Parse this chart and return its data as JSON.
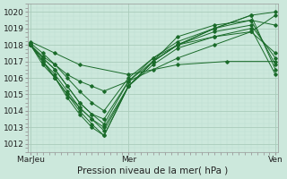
{
  "xlabel": "Pression niveau de la mer( hPa )",
  "bg_color": "#cce8dc",
  "grid_major_color": "#aaccbb",
  "grid_minor_color": "#bbddd0",
  "line_color": "#1a6b2a",
  "ylim": [
    1011.5,
    1020.5
  ],
  "yticks": [
    1012,
    1013,
    1014,
    1015,
    1016,
    1017,
    1018,
    1019,
    1020
  ],
  "xtick_labels": [
    "Mar⁠Jeu",
    "Mer",
    "Ven"
  ],
  "xtick_positions": [
    0.0,
    0.4,
    1.0
  ],
  "lines": [
    {
      "x": [
        0.0,
        0.05,
        0.1,
        0.15,
        0.2,
        0.25,
        0.3,
        0.4,
        0.5,
        0.6,
        0.75,
        0.9,
        1.0
      ],
      "y": [
        1018.1,
        1017.5,
        1016.8,
        1016.2,
        1015.8,
        1015.5,
        1015.2,
        1015.8,
        1016.5,
        1017.2,
        1018.0,
        1018.8,
        1019.8
      ]
    },
    {
      "x": [
        0.0,
        0.05,
        0.1,
        0.15,
        0.2,
        0.25,
        0.3,
        0.4,
        0.5,
        0.6,
        0.75,
        0.9,
        1.0
      ],
      "y": [
        1018.0,
        1017.0,
        1016.0,
        1015.0,
        1014.2,
        1013.5,
        1012.8,
        1015.5,
        1017.0,
        1018.0,
        1019.0,
        1019.8,
        1020.0
      ]
    },
    {
      "x": [
        0.0,
        0.05,
        0.1,
        0.15,
        0.2,
        0.25,
        0.3,
        0.4,
        0.5,
        0.6,
        0.75,
        0.9,
        1.0
      ],
      "y": [
        1018.0,
        1017.2,
        1016.5,
        1015.5,
        1014.5,
        1013.8,
        1013.2,
        1015.8,
        1017.2,
        1018.2,
        1019.0,
        1019.5,
        1019.2
      ]
    },
    {
      "x": [
        0.0,
        0.05,
        0.1,
        0.15,
        0.2,
        0.25,
        0.3,
        0.4,
        0.5,
        0.6,
        0.75,
        0.9,
        1.0
      ],
      "y": [
        1018.0,
        1016.8,
        1016.0,
        1015.0,
        1014.0,
        1013.2,
        1012.5,
        1015.5,
        1017.0,
        1018.0,
        1019.0,
        1019.8,
        1016.5
      ]
    },
    {
      "x": [
        0.0,
        0.05,
        0.1,
        0.15,
        0.2,
        0.25,
        0.3,
        0.4,
        0.5,
        0.6,
        0.75,
        0.9,
        1.0
      ],
      "y": [
        1018.0,
        1017.3,
        1016.8,
        1016.0,
        1015.2,
        1014.5,
        1014.0,
        1016.0,
        1017.2,
        1018.0,
        1018.8,
        1019.2,
        1017.2
      ]
    },
    {
      "x": [
        0.0,
        0.05,
        0.1,
        0.15,
        0.2,
        0.25,
        0.3,
        0.4,
        0.5,
        0.6,
        0.75,
        0.9,
        1.0
      ],
      "y": [
        1018.0,
        1017.0,
        1016.2,
        1015.2,
        1014.2,
        1013.5,
        1013.0,
        1015.5,
        1016.8,
        1017.8,
        1018.5,
        1019.0,
        1016.2
      ]
    },
    {
      "x": [
        0.0,
        0.05,
        0.1,
        0.15,
        0.2,
        0.25,
        0.3,
        0.4,
        0.5,
        0.6,
        0.75,
        0.9,
        1.0
      ],
      "y": [
        1018.0,
        1017.2,
        1016.5,
        1015.5,
        1014.5,
        1013.8,
        1013.5,
        1015.8,
        1017.0,
        1018.0,
        1018.5,
        1018.8,
        1017.5
      ]
    },
    {
      "x": [
        0.0,
        0.05,
        0.1,
        0.15,
        0.2,
        0.25,
        0.3,
        0.4,
        0.5,
        0.6,
        0.75,
        0.9,
        1.0
      ],
      "y": [
        1018.0,
        1017.0,
        1016.0,
        1014.8,
        1013.8,
        1013.0,
        1012.5,
        1015.5,
        1017.0,
        1018.5,
        1019.2,
        1019.5,
        1016.8
      ]
    },
    {
      "x": [
        0.0,
        0.1,
        0.2,
        0.4,
        0.6,
        0.8,
        1.0
      ],
      "y": [
        1018.2,
        1017.5,
        1016.8,
        1016.2,
        1016.8,
        1017.0,
        1017.0
      ]
    }
  ]
}
